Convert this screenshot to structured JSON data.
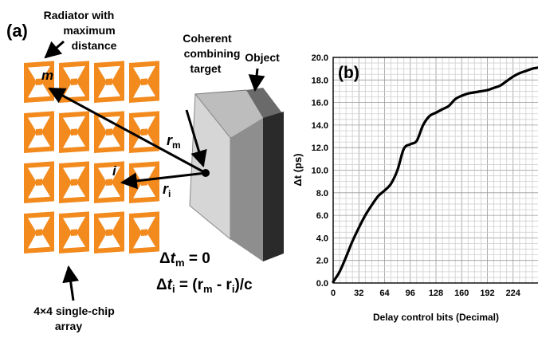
{
  "panel_a": {
    "label": "(a)",
    "radiator_label": [
      "Radiator with",
      "maximum",
      "distance"
    ],
    "target_label": [
      "Coherent",
      "combining",
      "target"
    ],
    "object_label": "Object",
    "array_label": [
      "4×4 single-chip",
      "array"
    ],
    "element_m": "m",
    "element_i": "i",
    "r_m": {
      "main": "r",
      "sub": "m"
    },
    "r_i": {
      "main": "r",
      "sub": "i"
    },
    "eq1": {
      "delta": "Δ",
      "t": "t",
      "sub": "m",
      "rest": " = 0"
    },
    "eq2": {
      "delta": "Δ",
      "t": "t",
      "sub": "i",
      "rest": " = (r",
      "sub_m": "m",
      "minus": " - r",
      "sub_i": "i",
      "end": ")/c"
    },
    "grid": {
      "rows": 4,
      "cols": 4
    },
    "colors": {
      "antenna": "#f28a1e",
      "antenna_inner": "#ffffff",
      "object_light": "#c8c8c8",
      "object_mid": "#8e8e8e",
      "object_dark": "#2a2a2a"
    }
  },
  "chart_data": {
    "type": "line",
    "panel_label": "(b)",
    "xlabel": "Delay control bits (Decimal)",
    "ylabel": "Δt (ps)",
    "xlim": [
      0,
      256
    ],
    "ylim": [
      0,
      20
    ],
    "x_ticks": [
      "0",
      "32",
      "64",
      "96",
      "128",
      "160",
      "192",
      "224"
    ],
    "x_tick_values": [
      0,
      32,
      64,
      96,
      128,
      160,
      192,
      224
    ],
    "y_ticks": [
      "0.0",
      "2.0",
      "4.0",
      "6.0",
      "8.0",
      "10.0",
      "12.0",
      "14.0",
      "16.0",
      "18.0",
      "20.0"
    ],
    "y_tick_values": [
      0,
      2,
      4,
      6,
      8,
      10,
      12,
      14,
      16,
      18,
      20
    ],
    "grid": true,
    "series": [
      {
        "x": [
          0,
          8,
          16,
          24,
          32,
          40,
          48,
          56,
          64,
          72,
          80,
          88,
          96,
          104,
          112,
          120,
          128,
          136,
          144,
          152,
          160,
          168,
          176,
          184,
          192,
          200,
          208,
          216,
          224,
          232,
          240,
          248,
          256
        ],
        "y": [
          0.1,
          1.0,
          2.3,
          3.7,
          4.9,
          6.0,
          6.9,
          7.7,
          8.2,
          8.8,
          10.0,
          11.9,
          12.3,
          12.6,
          14.0,
          14.8,
          15.1,
          15.4,
          15.7,
          16.3,
          16.6,
          16.8,
          16.9,
          17.0,
          17.1,
          17.3,
          17.5,
          17.9,
          18.3,
          18.6,
          18.8,
          19.0,
          19.1
        ]
      }
    ],
    "colors": {
      "line": "#000000",
      "grid": "#cfcfcf",
      "grid_major": "#9a9a9a"
    }
  }
}
